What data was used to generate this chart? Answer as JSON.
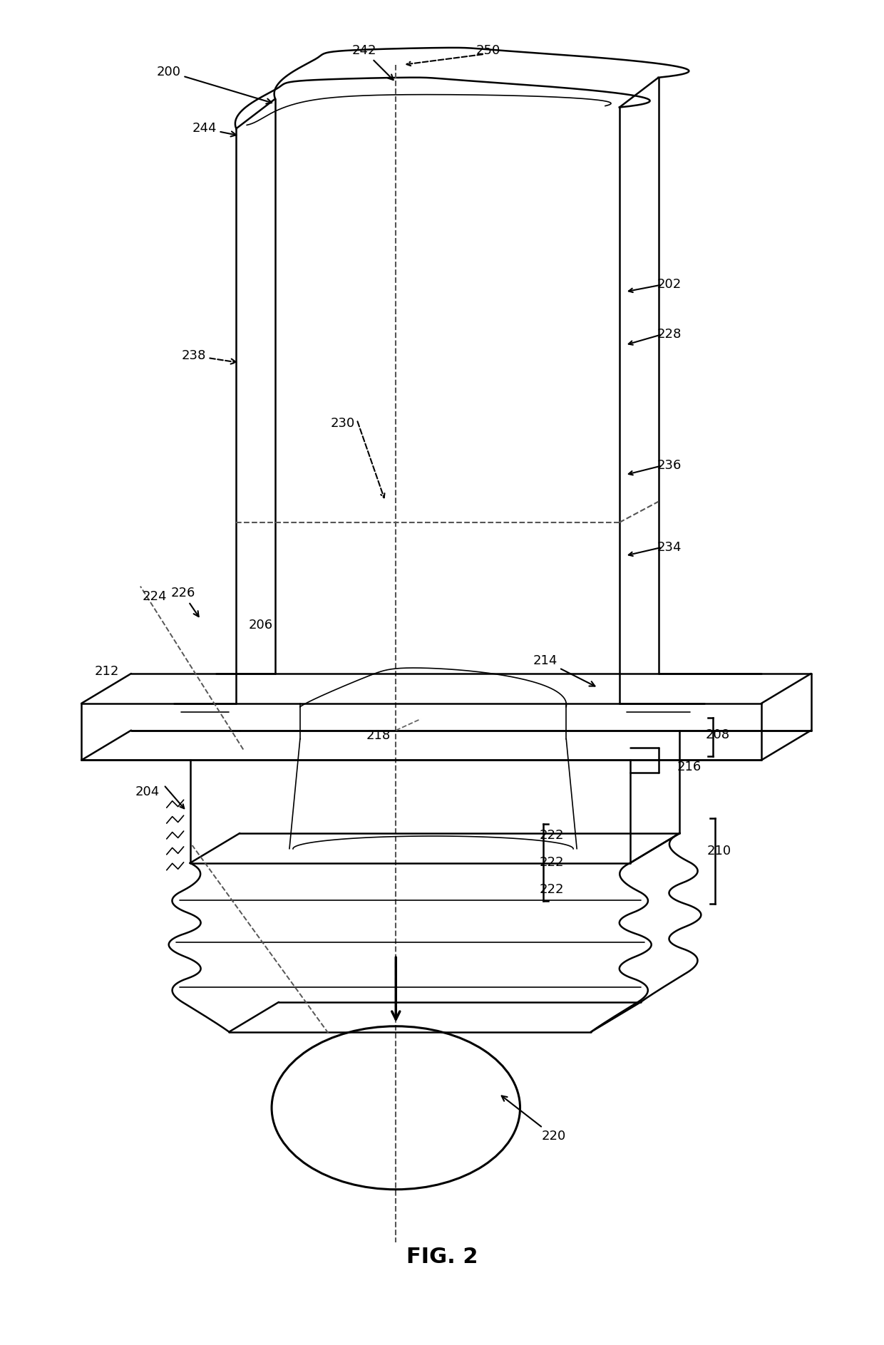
{
  "title": "FIG. 2",
  "background_color": "#ffffff",
  "line_color": "#000000",
  "fig_width": 12.4,
  "fig_height": 18.87,
  "label_fontsize": 13,
  "title_fontsize": 22
}
